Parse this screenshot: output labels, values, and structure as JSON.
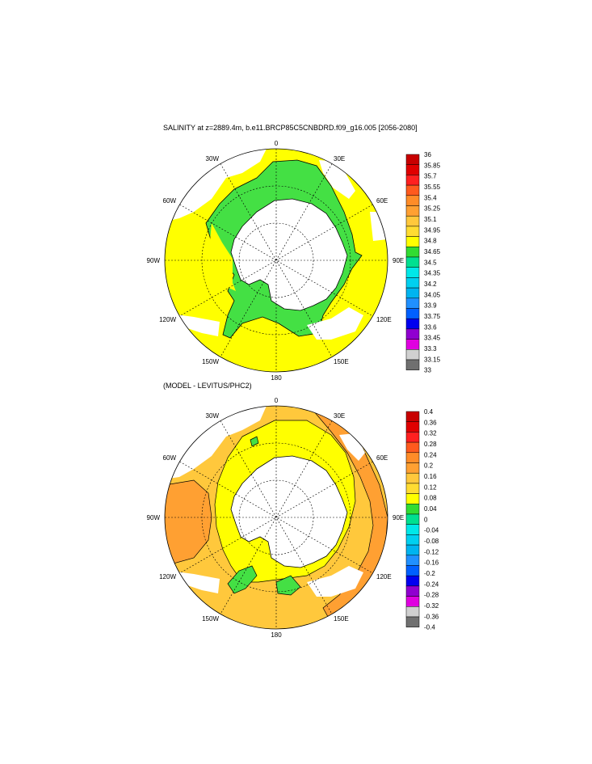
{
  "top_panel": {
    "title": "SALINITY at z=2889.4m, b.e11.BRCP85C5CNBDRD.f09_g16.005 [2056-2080]",
    "lon_labels": {
      "n": "0",
      "nne": "30E",
      "ene": "60E",
      "e": "90E",
      "ese": "120E",
      "sse": "150E",
      "s": "180",
      "ssw": "150W",
      "wsw": "120W",
      "w": "90W",
      "wnw": "60W",
      "nnw": "30W"
    },
    "colorbar": {
      "labels": [
        "36",
        "35.85",
        "35.7",
        "35.55",
        "35.4",
        "35.25",
        "35.1",
        "34.95",
        "34.8",
        "34.65",
        "34.5",
        "34.35",
        "34.2",
        "34.05",
        "33.9",
        "33.75",
        "33.6",
        "33.45",
        "33.3",
        "33.15",
        "33"
      ],
      "colors": [
        "#c80000",
        "#e00000",
        "#ff2020",
        "#ff5a1e",
        "#ff8c28",
        "#ffa032",
        "#ffc83c",
        "#ffdc32",
        "#ffff00",
        "#32dc32",
        "#00e090",
        "#00e8e8",
        "#00d0f0",
        "#00b4f0",
        "#2090ff",
        "#0060ff",
        "#0000f0",
        "#9000d0",
        "#e000e0",
        "#d0d0d0"
      ],
      "bottom_color": "#707070"
    },
    "field_colors": {
      "ocean": "#ffff00",
      "green": "#44e044",
      "land": "#ffffff"
    }
  },
  "bottom_panel": {
    "title": "(MODEL - LEVITUS/PHC2)",
    "lon_labels": {
      "n": "0",
      "nne": "30E",
      "ene": "60E",
      "e": "90E",
      "ese": "120E",
      "sse": "150E",
      "s": "180",
      "ssw": "150W",
      "wsw": "120W",
      "w": "90W",
      "wnw": "60W",
      "nnw": "30W"
    },
    "colorbar": {
      "labels": [
        "0.4",
        "0.36",
        "0.32",
        "0.28",
        "0.24",
        "0.2",
        "0.16",
        "0.12",
        "0.08",
        "0.04",
        "0",
        "-0.04",
        "-0.08",
        "-0.12",
        "-0.16",
        "-0.2",
        "-0.24",
        "-0.28",
        "-0.32",
        "-0.36",
        "-0.4"
      ],
      "colors": [
        "#c80000",
        "#e00000",
        "#ff2020",
        "#ff5a1e",
        "#ff8c28",
        "#ffa032",
        "#ffc83c",
        "#ffdc32",
        "#ffff00",
        "#32dc32",
        "#00e090",
        "#00e8e8",
        "#00d0f0",
        "#00b4f0",
        "#2090ff",
        "#0060ff",
        "#0000f0",
        "#9000d0",
        "#e000e0",
        "#d0d0d0"
      ],
      "bottom_color": "#707070"
    },
    "field_colors": {
      "yellow": "#ffff00",
      "orange": "#ffc83c",
      "dark_orange": "#ffa032",
      "green": "#44e044",
      "land": "#ffffff"
    }
  }
}
